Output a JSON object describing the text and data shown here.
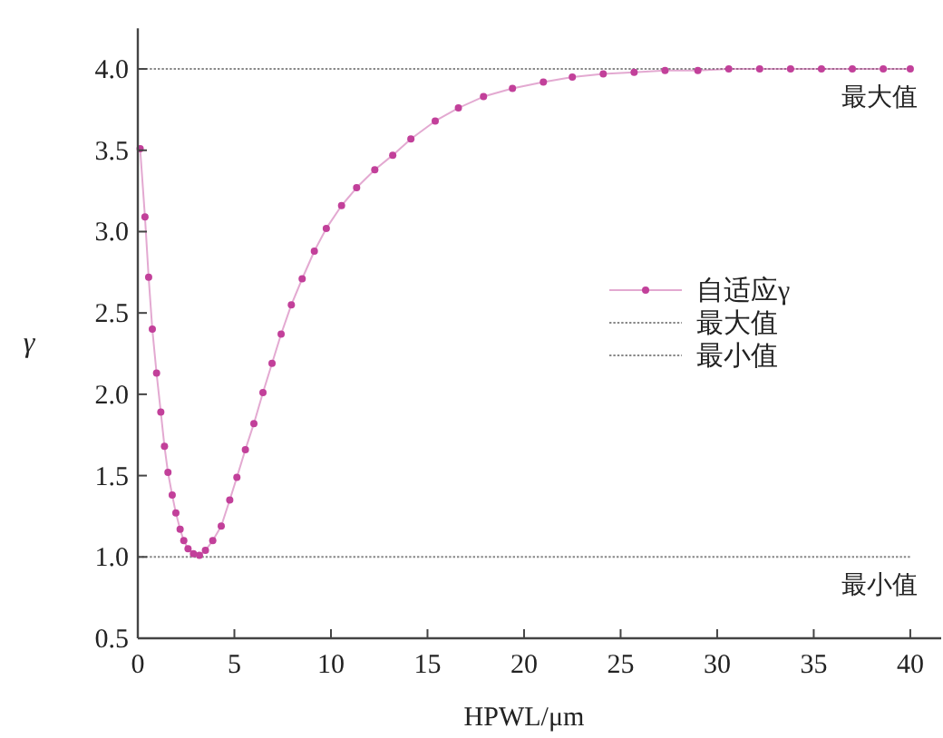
{
  "chart_data": {
    "type": "line",
    "xlabel": "HPWL/μm",
    "ylabel": "γ",
    "xlim": [
      0,
      41.6
    ],
    "ylim": [
      0.5,
      4.25
    ],
    "xticks": [
      0,
      5,
      10,
      15,
      20,
      25,
      30,
      35,
      40
    ],
    "yticks": [
      {
        "value": 0.5,
        "label": "0.5"
      },
      {
        "value": 1.0,
        "label": "1.0"
      },
      {
        "value": 1.5,
        "label": "1.5"
      },
      {
        "value": 2.0,
        "label": "2.0"
      },
      {
        "value": 2.5,
        "label": "2.5"
      },
      {
        "value": 3.0,
        "label": "3.0"
      },
      {
        "value": 3.5,
        "label": "3.5"
      },
      {
        "value": 4.0,
        "label": "4.0"
      }
    ],
    "series": [
      {
        "name": "自适应γ",
        "color": "#c2409a",
        "x": [
          0.12,
          0.37,
          0.56,
          0.75,
          0.97,
          1.19,
          1.38,
          1.56,
          1.78,
          1.97,
          2.19,
          2.38,
          2.6,
          2.88,
          3.19,
          3.5,
          3.88,
          4.32,
          4.76,
          5.13,
          5.57,
          6.01,
          6.48,
          6.95,
          7.42,
          7.95,
          8.51,
          9.14,
          9.76,
          10.55,
          11.33,
          12.27,
          13.2,
          14.14,
          15.4,
          16.6,
          17.9,
          19.4,
          21.0,
          22.5,
          24.1,
          25.7,
          27.3,
          29.0,
          30.6,
          32.2,
          33.8,
          35.4,
          37.0,
          38.6,
          40.0
        ],
        "values": [
          3.51,
          3.09,
          2.72,
          2.4,
          2.13,
          1.89,
          1.68,
          1.52,
          1.38,
          1.27,
          1.17,
          1.1,
          1.05,
          1.02,
          1.01,
          1.04,
          1.1,
          1.19,
          1.35,
          1.49,
          1.66,
          1.82,
          2.01,
          2.19,
          2.37,
          2.55,
          2.71,
          2.88,
          3.02,
          3.16,
          3.27,
          3.38,
          3.47,
          3.57,
          3.68,
          3.76,
          3.83,
          3.88,
          3.92,
          3.95,
          3.97,
          3.98,
          3.99,
          3.99,
          4.0,
          4.0,
          4.0,
          4.0,
          4.0,
          4.0,
          4.0
        ]
      }
    ],
    "marker": "circle",
    "ref_lines": [
      {
        "axis": "y",
        "value": 4.0,
        "label": "最大值",
        "color": "#888888",
        "line_style": "dotted"
      },
      {
        "axis": "y",
        "value": 1.0,
        "label": "最小值",
        "color": "#888888",
        "line_style": "dotted"
      }
    ],
    "legend": "right"
  }
}
